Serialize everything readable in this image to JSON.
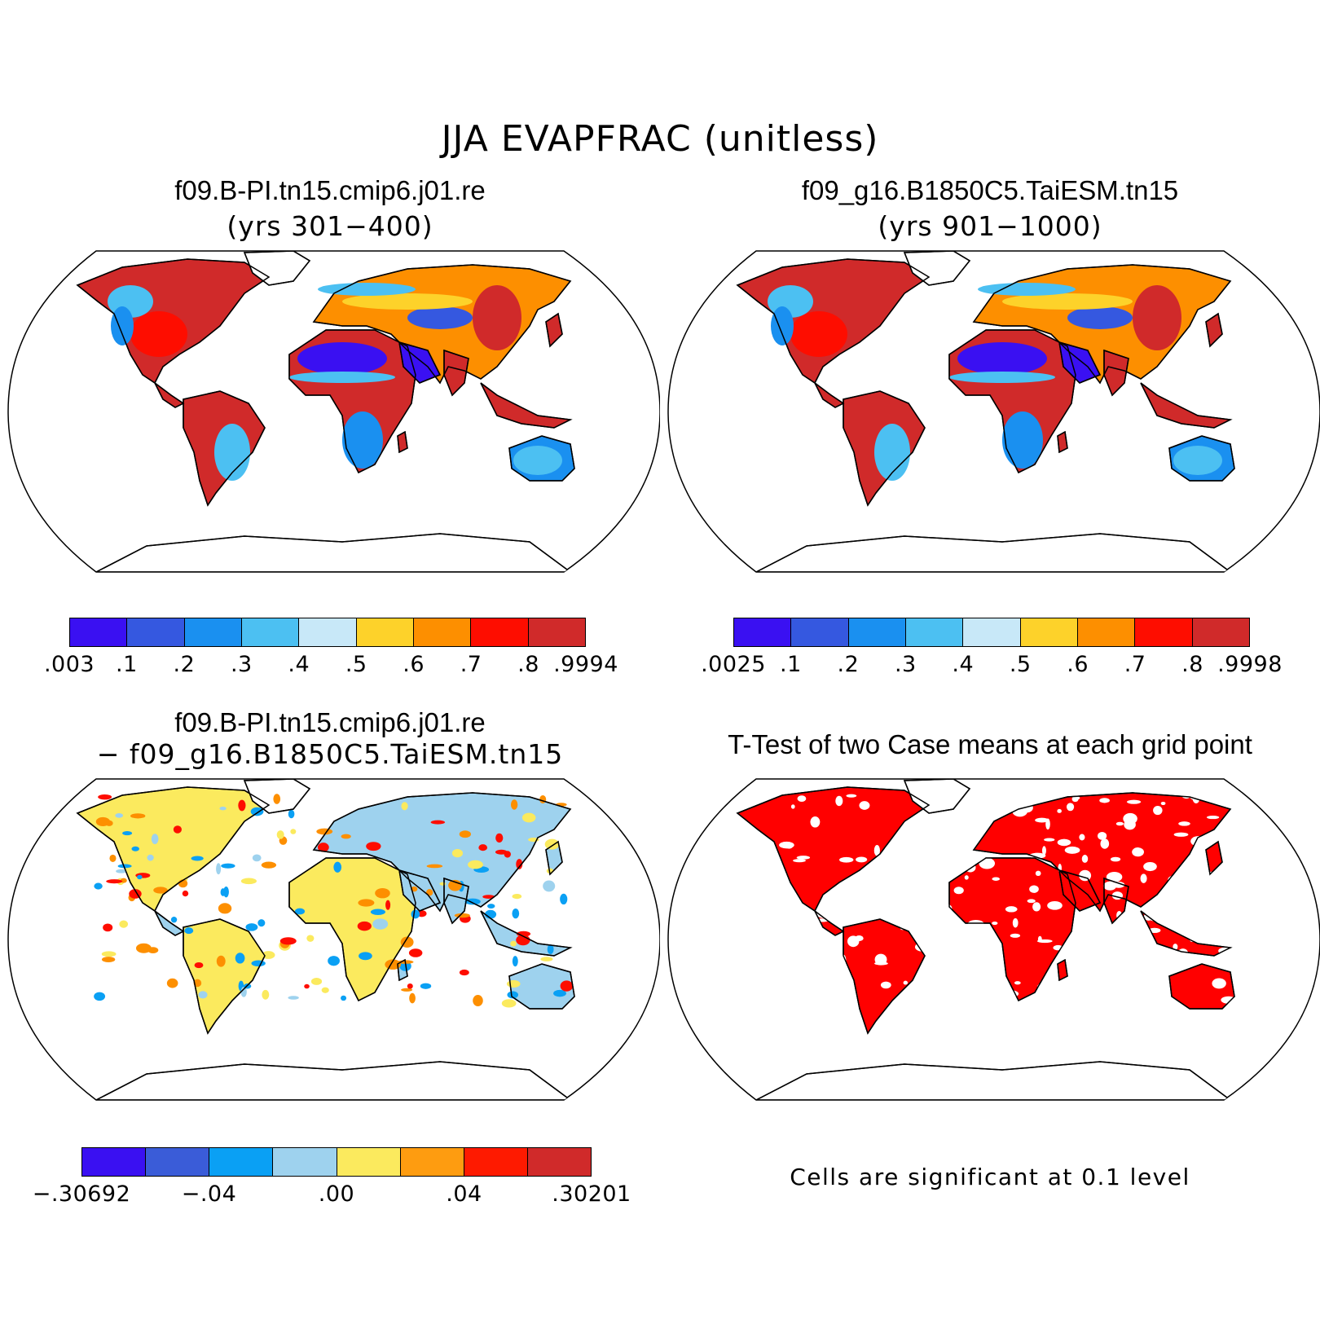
{
  "title": "JJA EVAPFRAC (unitless)",
  "panels": {
    "case1": {
      "name": "f09.B-PI.tn15.cmip6.j01.re",
      "years": "(yrs 301−400)"
    },
    "case2": {
      "name": "f09_g16.B1850C5.TaiESM.tn15",
      "years": "(yrs 901−1000)"
    },
    "diff": {
      "line1": "f09.B-PI.tn15.cmip6.j01.re",
      "line2": "− f09_g16.B1850C5.TaiESM.tn15"
    },
    "ttest": {
      "title": "T-Test of two Case means at each grid point",
      "note": "Cells are significant at 0.1 level"
    }
  },
  "colorbars": {
    "case1": {
      "labels": [
        ".003",
        ".1",
        ".2",
        ".3",
        ".4",
        ".5",
        ".6",
        ".7",
        ".8",
        ".9994"
      ],
      "colors": [
        "#3a10f2",
        "#3558e0",
        "#1a90f0",
        "#4cc0f2",
        "#c8e8f8",
        "#fdd22a",
        "#fd8f00",
        "#fe0d00",
        "#d02a2a"
      ]
    },
    "case2": {
      "labels": [
        ".0025",
        ".1",
        ".2",
        ".3",
        ".4",
        ".5",
        ".6",
        ".7",
        ".8",
        ".9998"
      ],
      "colors": [
        "#3a10f2",
        "#3558e0",
        "#1a90f0",
        "#4cc0f2",
        "#c8e8f8",
        "#fdd22a",
        "#fd8f00",
        "#fe0d00",
        "#d02a2a"
      ]
    },
    "diff": {
      "labels": [
        "−.30692",
        "−.04",
        ".00",
        ".04",
        ".30201"
      ],
      "colors": [
        "#3a10f2",
        "#3a5cd8",
        "#0aa0f4",
        "#9ed2ee",
        "#fbea5e",
        "#fe9c10",
        "#fe1a00",
        "#d02a2a"
      ]
    }
  },
  "map_colors": {
    "dry": "#3a10f2",
    "dry2": "#3558e0",
    "mid": "#1a90f0",
    "light": "#4cc0f2",
    "pale": "#c8e8f8",
    "yellow": "#fdd22a",
    "orange": "#fd8f00",
    "red": "#fe0d00",
    "darkred": "#d02a2a",
    "diff_bg": "#9ed2ee",
    "diff_yellow": "#fbea5e",
    "sig": "#ff0000"
  }
}
